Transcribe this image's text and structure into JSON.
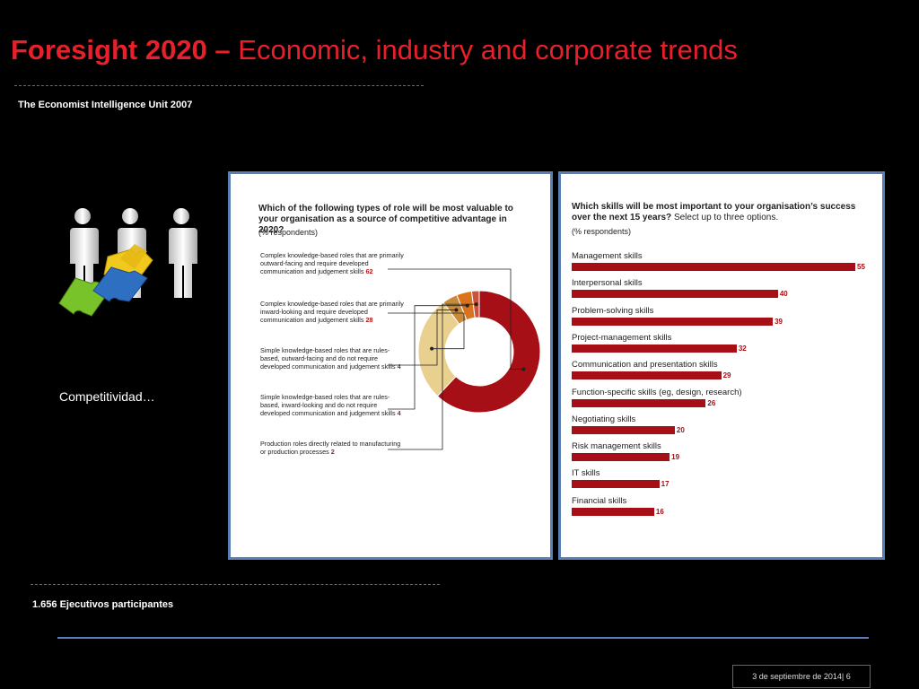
{
  "header": {
    "title_bold": "Foresight 2020 –",
    "title_rest": "Economic, industry and corporate  trends",
    "source": "The Economist Intelligence Unit 2007"
  },
  "left_caption": "Competitividad…",
  "participants": "1.656 Ejecutivos  participantes",
  "footer": "3 de septiembre de 2014| 6",
  "colors": {
    "title": "#e8202a",
    "accent_bar": "#a50f15",
    "panel_border": "#5a7fb5"
  },
  "chart_data": [
    {
      "type": "pie",
      "title": "Which of the following types of role will be most valuable to your organisation as a source of competitive advantage in 2020?",
      "subtitle": "(% respondents)",
      "categories": [
        "Complex knowledge-based roles that are primarily outward-facing and require developed communication and judgement skills",
        "Complex knowledge-based roles that are primarily inward-looking and require developed communication and judgement skills",
        "Simple knowledge-based roles that are rules-based, outward-facing and do not require developed communication and judgement skills",
        "Simple knowledge-based roles that are rules-based, inward-looking and do not require developed communication and judgement skills",
        "Production roles directly related to manufacturing or production processes"
      ],
      "values": [
        62,
        28,
        4,
        4,
        2
      ],
      "colors": [
        "#a50f15",
        "#e9d08f",
        "#c98a3a",
        "#d9731e",
        "#c9543a"
      ]
    },
    {
      "type": "bar",
      "title_bold": "Which skills will be most important to your organisation’s success over the next 15 years?",
      "title_rest": "Select up to three options.",
      "subtitle": "(% respondents)",
      "categories": [
        "Management skills",
        "Interpersonal skills",
        "Problem-solving skills",
        "Project-management skills",
        "Communication and presentation skills",
        "Function-specific skills (eg, design, research)",
        "Negotiating skills",
        "Risk management skills",
        "IT skills",
        "Financial skills"
      ],
      "values": [
        55,
        40,
        39,
        32,
        29,
        26,
        20,
        19,
        17,
        16
      ]
    }
  ]
}
